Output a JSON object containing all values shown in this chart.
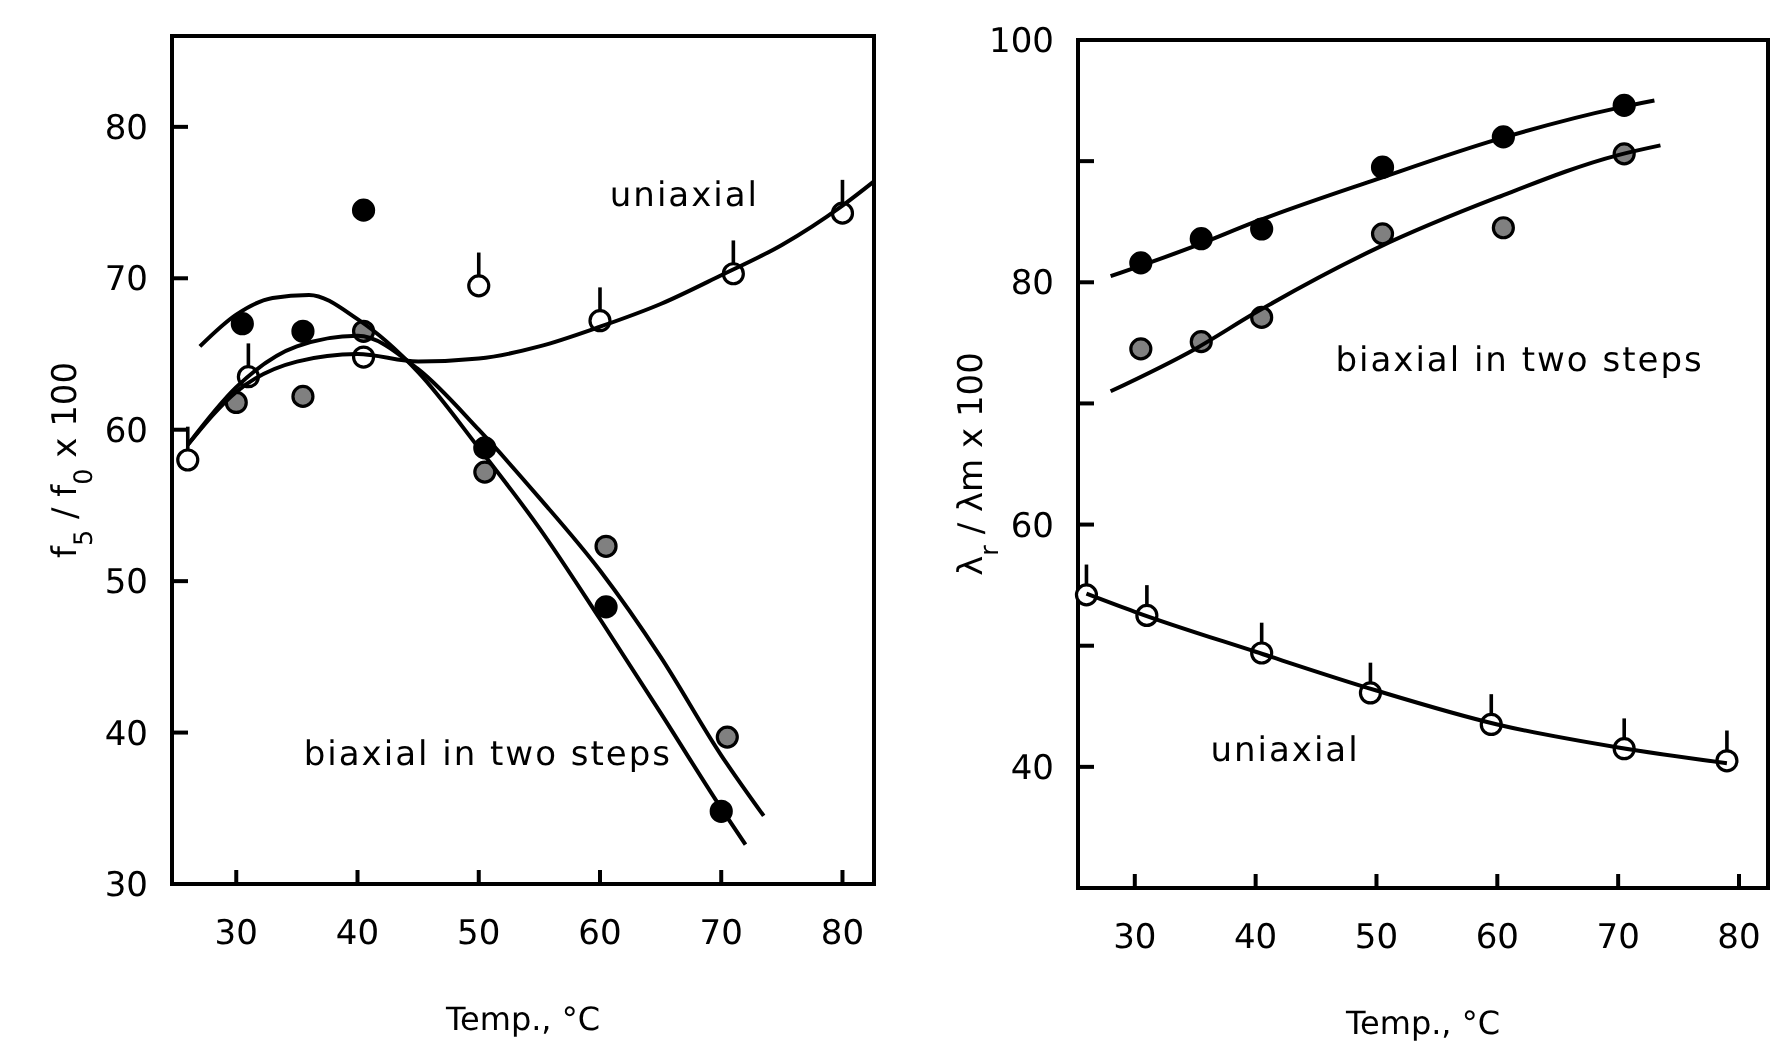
{
  "chart_data": [
    {
      "type": "scatter",
      "ylabel": "f$_{5}$ / f$_{0}$ x 100",
      "xlabel": "Temp., °C",
      "xlim": [
        24.7,
        82.6
      ],
      "xticks": [
        30,
        40,
        50,
        60,
        70,
        80
      ],
      "ylim": [
        30,
        86
      ],
      "yticks": [
        30,
        40,
        50,
        60,
        70,
        80
      ],
      "grid": false,
      "series": [
        {
          "type": "scatter",
          "marker": "circle",
          "color": "#000000",
          "x": [
            30.5,
            35.5,
            40.5,
            50.5,
            60.5,
            70
          ],
          "values": [
            67,
            66.5,
            74.5,
            58.8,
            48.3,
            34.8
          ]
        },
        {
          "type": "scatter",
          "marker": "circle",
          "color": "#808080",
          "x": [
            30,
            35.5,
            40.5,
            50.5,
            60.5,
            70.5
          ],
          "values": [
            61.8,
            62.2,
            66.5,
            57.2,
            52.3,
            39.7
          ]
        },
        {
          "type": "scatter",
          "marker": "circle",
          "color": "#ffffff",
          "x": [
            26,
            31,
            40.5,
            50,
            60,
            71,
            80
          ],
          "values": [
            58,
            63.5,
            64.8,
            69.5,
            67.2,
            70.3,
            74.3
          ],
          "errors": [
            [
              58,
              60.2
            ],
            [
              63.5,
              65.7
            ],
            null,
            [
              69.5,
              71.7
            ],
            [
              67.2,
              69.4
            ],
            [
              70.3,
              72.5
            ],
            [
              74.3,
              76.5
            ]
          ]
        },
        {
          "type": "line",
          "color": "#000000",
          "x": [
            27,
            30,
            33,
            36,
            40,
            45,
            50,
            55,
            60,
            65,
            70,
            72
          ],
          "values": [
            65.5,
            67.6,
            68.7,
            68.9,
            67.3,
            63.8,
            58.8,
            53.5,
            47.5,
            41.3,
            35,
            32.6
          ]
        },
        {
          "type": "line",
          "color": "#000000",
          "x": [
            26,
            30,
            35,
            40,
            45,
            50,
            55,
            60,
            65,
            70,
            73.5
          ],
          "values": [
            59,
            62.8,
            65.5,
            66.2,
            64,
            60,
            55.5,
            50.7,
            45,
            38.5,
            34.5
          ]
        },
        {
          "type": "line",
          "color": "#000000",
          "x": [
            26,
            30,
            35,
            40,
            45,
            50,
            55,
            60,
            65,
            70,
            75,
            80,
            82.6
          ],
          "values": [
            59,
            62.5,
            64.5,
            65,
            64.5,
            64.7,
            65.5,
            66.8,
            68.3,
            70.2,
            72.2,
            74.8,
            76.4
          ]
        }
      ],
      "annotations": [
        "uniaxial",
        "biaxial in two steps"
      ]
    },
    {
      "type": "scatter",
      "ylabel": "λ$_{r}$ / λm x 100",
      "xlabel": "Temp., °C",
      "xlim": [
        25.3,
        82.4
      ],
      "xticks": [
        30,
        40,
        50,
        60,
        70,
        80
      ],
      "ylim": [
        30,
        100
      ],
      "yticks": [
        {
          "value": 30,
          "label": null
        },
        40,
        {
          "value": 50,
          "label": null
        },
        60,
        {
          "value": 70,
          "label": null
        },
        80,
        {
          "value": 90,
          "label": null
        },
        100
      ],
      "grid": false,
      "series": [
        {
          "type": "scatter",
          "marker": "circle",
          "color": "#000000",
          "x": [
            30.5,
            35.5,
            40.5,
            50.5,
            60.5,
            70.5
          ],
          "values": [
            81.6,
            83.6,
            84.4,
            89.5,
            92,
            94.6
          ]
        },
        {
          "type": "scatter",
          "marker": "circle",
          "color": "#808080",
          "x": [
            30.5,
            35.5,
            40.5,
            50.5,
            60.5,
            70.5
          ],
          "values": [
            74.5,
            75.1,
            77.1,
            84,
            84.5,
            90.6
          ]
        },
        {
          "type": "scatter",
          "marker": "circle",
          "color": "#ffffff",
          "x": [
            26,
            31,
            40.5,
            49.5,
            59.5,
            70.5,
            79
          ],
          "values": [
            54.2,
            52.5,
            49.4,
            46.1,
            43.5,
            41.5,
            40.5
          ],
          "errors": [
            [
              54.2,
              56.7
            ],
            [
              52.5,
              55
            ],
            [
              49.4,
              51.9
            ],
            [
              46.1,
              48.6
            ],
            [
              43.5,
              46
            ],
            [
              41.5,
              44
            ],
            [
              40.5,
              43
            ]
          ]
        },
        {
          "type": "line",
          "color": "#000000",
          "x": [
            28,
            35,
            40,
            50,
            60,
            70,
            73
          ],
          "values": [
            80.5,
            83,
            85,
            88.5,
            91.8,
            94.4,
            95
          ]
        },
        {
          "type": "line",
          "color": "#000000",
          "x": [
            28,
            35,
            40,
            50,
            60,
            70,
            73.5
          ],
          "values": [
            71,
            74.5,
            77.5,
            82.8,
            87,
            90.5,
            91.3
          ]
        },
        {
          "type": "line",
          "color": "#000000",
          "x": [
            26,
            30,
            40,
            50,
            60,
            70,
            79
          ],
          "values": [
            54.3,
            52.8,
            49.5,
            46.3,
            43.5,
            41.6,
            40.3
          ]
        }
      ],
      "annotations": [
        "biaxial in two steps",
        "uniaxial"
      ]
    }
  ]
}
